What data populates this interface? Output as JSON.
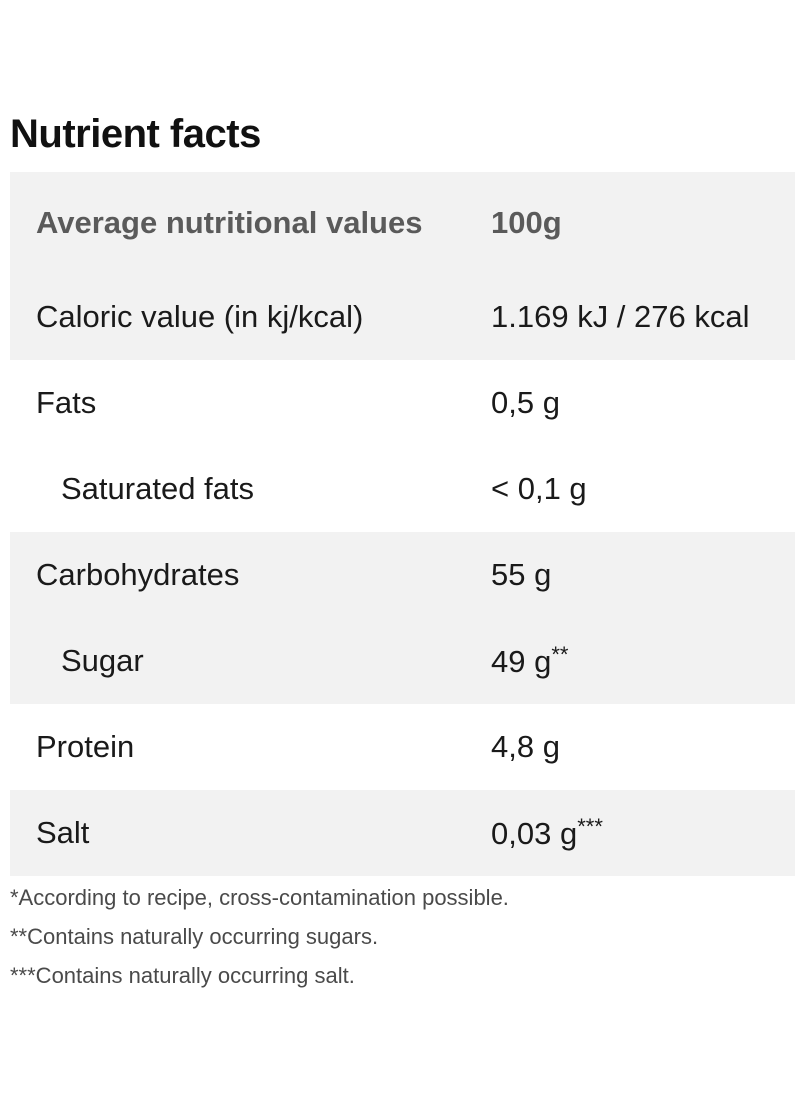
{
  "title": "Nutrient facts",
  "table": {
    "header": {
      "label": "Average nutritional values",
      "value": "100g"
    },
    "rows": [
      {
        "label": "Caloric value (in kj/kcal)",
        "value": "1.169 kJ / 276 kcal",
        "mark": ""
      },
      {
        "label": "Fats",
        "value": "0,5 g",
        "mark": ""
      },
      {
        "label": "Saturated fats",
        "value": "< 0,1 g",
        "mark": ""
      },
      {
        "label": "Carbohydrates",
        "value": "55 g",
        "mark": ""
      },
      {
        "label": "Sugar",
        "value": "49 g",
        "mark": "**"
      },
      {
        "label": "Protein",
        "value": "4,8 g",
        "mark": ""
      },
      {
        "label": "Salt",
        "value": "0,03 g",
        "mark": "***"
      }
    ]
  },
  "footnotes": [
    "*According to recipe, cross-contamination possible.",
    "**Contains naturally occurring sugars.",
    "***Contains naturally occurring salt."
  ],
  "colors": {
    "shaded_row": "#f2f2f2",
    "header_text": "#5a5a5a",
    "footnote_text": "#4a4a4a"
  }
}
